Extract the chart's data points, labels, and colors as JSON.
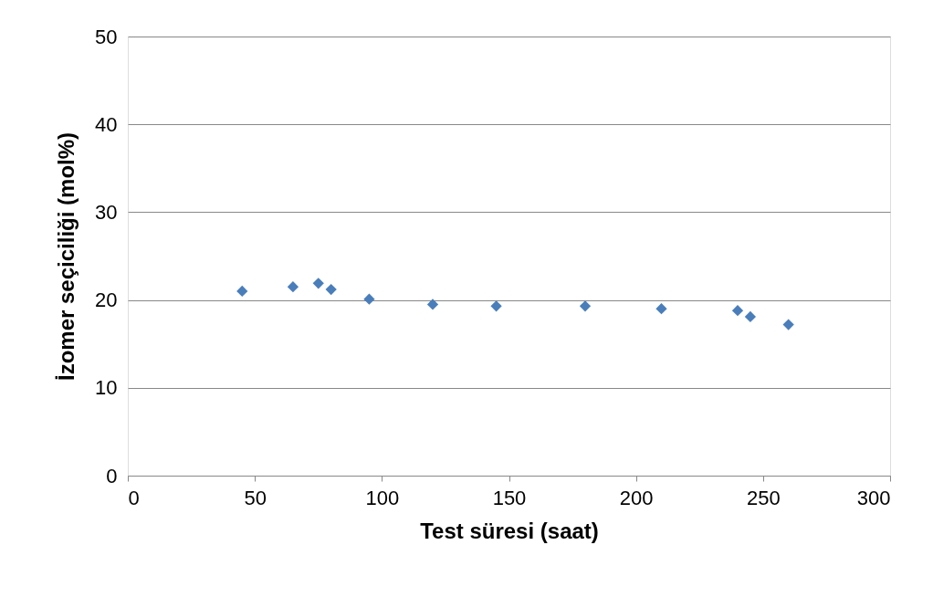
{
  "chart_data": {
    "type": "scatter",
    "xlabel": "Test süresi (saat)",
    "ylabel": "İzomer seçiciliği (mol%)",
    "x": [
      45,
      65,
      75,
      80,
      95,
      120,
      145,
      180,
      210,
      240,
      245,
      260
    ],
    "series": [
      {
        "color": "#4a7ebb",
        "values": [
          21.0,
          21.5,
          21.9,
          21.2,
          20.1,
          19.5,
          19.3,
          19.3,
          19.0,
          18.8,
          18.1,
          17.2
        ]
      }
    ],
    "xlim": [
      0,
      300
    ],
    "xticks": [
      0,
      50,
      100,
      150,
      200,
      250,
      300
    ],
    "ylim": [
      0,
      50
    ],
    "yticks": [
      0,
      10,
      20,
      30,
      40,
      50
    ],
    "grid": "y",
    "marker": "diamond"
  }
}
